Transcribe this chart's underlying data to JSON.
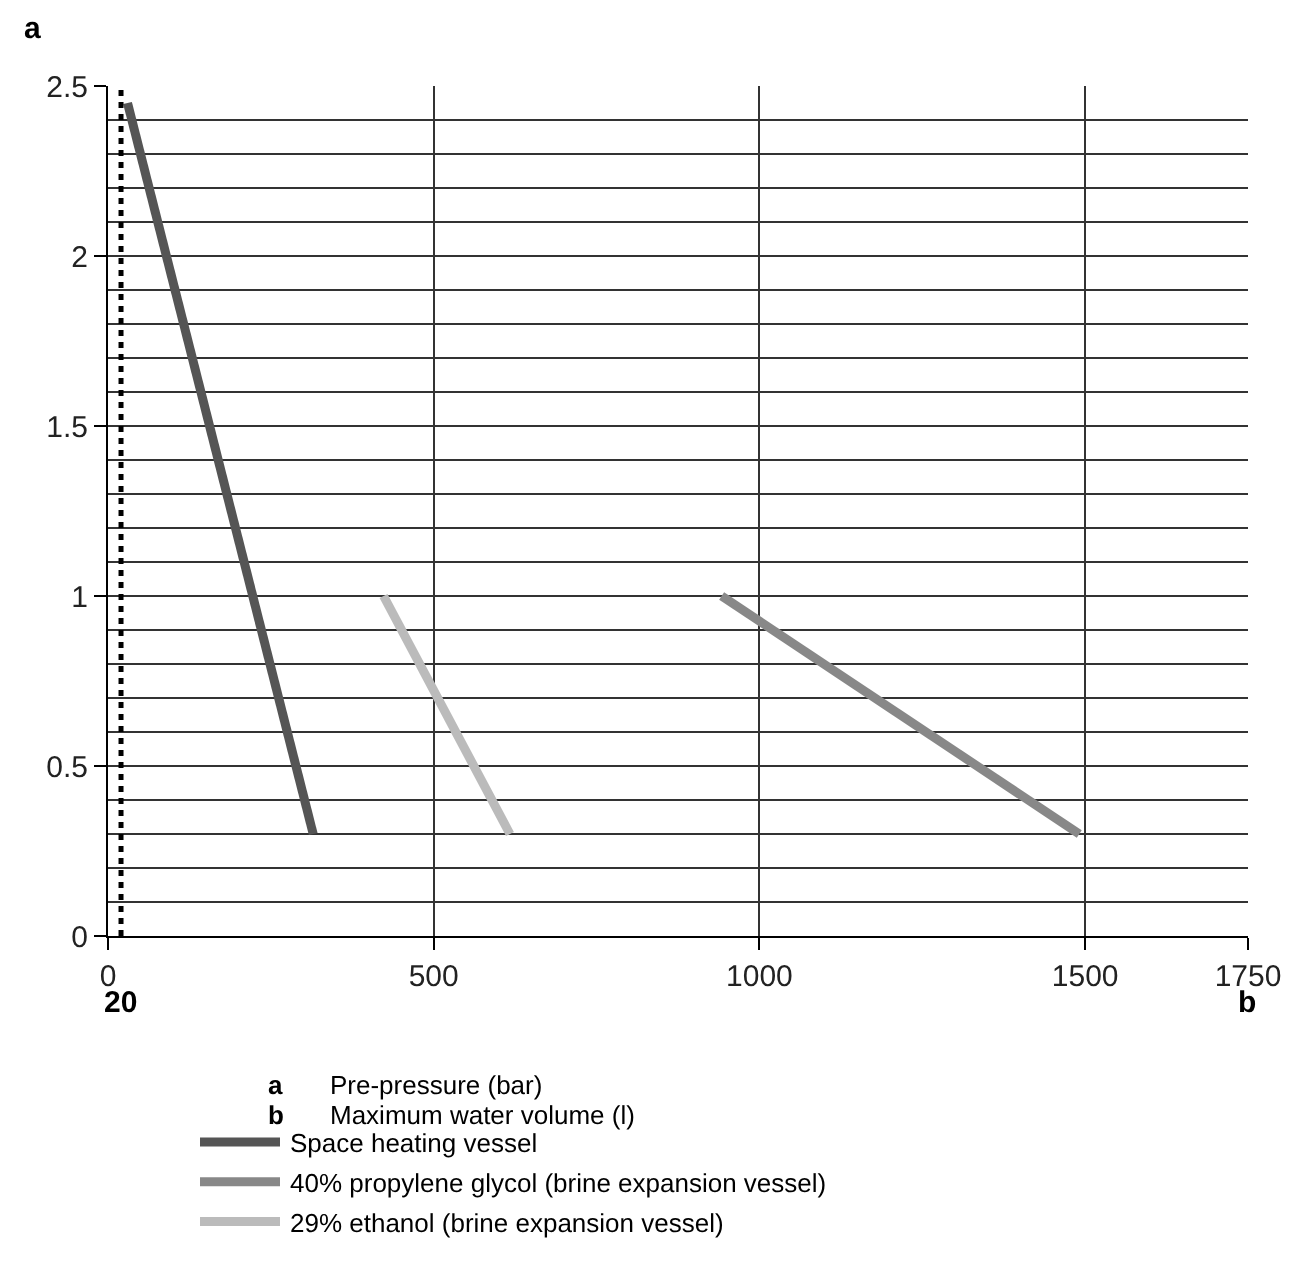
{
  "chart_data": {
    "type": "line",
    "xlabel": "b",
    "ylabel": "a",
    "annotations": [
      "Pre-pressure (bar)",
      "Maximum water volume (l)"
    ],
    "series": [
      {
        "name": "Space heating vessel",
        "color": "#555555",
        "x": [
          30,
          315
        ],
        "values": [
          2.45,
          0.3
        ]
      },
      {
        "name": "40% propylene glycol (brine expansion vessel)",
        "color": "#888888",
        "x": [
          942,
          1491
        ],
        "values": [
          1.0,
          0.3
        ]
      },
      {
        "name": "29% ethanol (brine expansion vessel)",
        "color": "#bbbbbb",
        "x": [
          423,
          617
        ],
        "values": [
          1.0,
          0.3
        ]
      }
    ],
    "xlim": [
      0,
      1750
    ],
    "xticks": [
      0,
      500,
      1000,
      1500,
      1750
    ],
    "ylim": [
      0,
      2.5
    ],
    "yticks": [
      0,
      0.5,
      1,
      1.5,
      2,
      2.5
    ],
    "ref_lines": [
      {
        "axis": "x",
        "value": 20,
        "label": "20",
        "line_style": "dotted",
        "color": "#000000"
      }
    ],
    "grid": true,
    "legend": "bottom",
    "marker": "none",
    "line_style": "solid"
  }
}
